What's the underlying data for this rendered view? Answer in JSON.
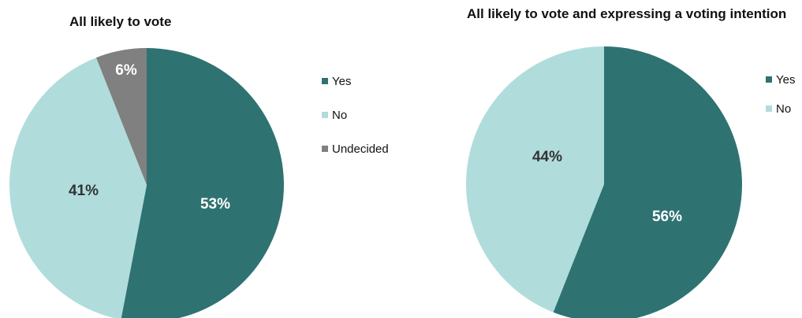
{
  "chart_data": [
    {
      "type": "pie",
      "title": "All likely to vote",
      "series": [
        {
          "categories": [
            "Yes",
            "No",
            "Undecided"
          ],
          "values": [
            53,
            41,
            6
          ],
          "labels": [
            "53%",
            "41%",
            "6%"
          ],
          "colors": [
            "#2f7272",
            "#b0dcdc",
            "#808080"
          ],
          "label_colors": [
            "#ffffff",
            "#333333",
            "#ffffff"
          ]
        }
      ],
      "legend": {
        "position": "right",
        "entries": [
          "Yes",
          "No",
          "Undecided"
        ]
      }
    },
    {
      "type": "pie",
      "title": "All likely to vote and expressing a voting intention",
      "series": [
        {
          "categories": [
            "Yes",
            "No"
          ],
          "values": [
            56,
            44
          ],
          "labels": [
            "56%",
            "44%"
          ],
          "colors": [
            "#2f7272",
            "#b0dcdc"
          ],
          "label_colors": [
            "#ffffff",
            "#333333"
          ]
        }
      ],
      "legend": {
        "position": "right",
        "entries": [
          "Yes",
          "No"
        ]
      }
    }
  ]
}
